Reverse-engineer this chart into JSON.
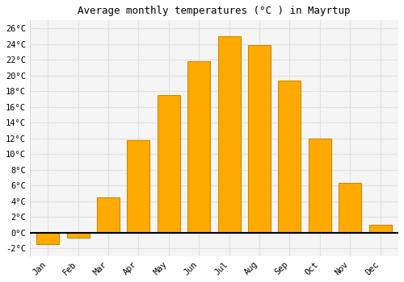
{
  "title": "Average monthly temperatures (°C ) in Mayrtup",
  "months": [
    "Jan",
    "Feb",
    "Mar",
    "Apr",
    "May",
    "Jun",
    "Jul",
    "Aug",
    "Sep",
    "Oct",
    "Nov",
    "Dec"
  ],
  "values": [
    -1.5,
    -0.7,
    4.5,
    11.8,
    17.5,
    21.8,
    25.0,
    23.8,
    19.3,
    12.0,
    6.3,
    1.0
  ],
  "bar_color": "#FFAA00",
  "bar_edge_color": "#CC8800",
  "background_color": "#ffffff",
  "plot_bg_color": "#f5f5f5",
  "grid_color": "#e0e0e0",
  "ylim": [
    -3,
    27
  ],
  "yticks": [
    -2,
    0,
    2,
    4,
    6,
    8,
    10,
    12,
    14,
    16,
    18,
    20,
    22,
    24,
    26
  ],
  "title_fontsize": 9,
  "tick_fontsize": 7.5,
  "bar_width": 0.75,
  "figsize": [
    5.0,
    3.5
  ],
  "dpi": 100
}
